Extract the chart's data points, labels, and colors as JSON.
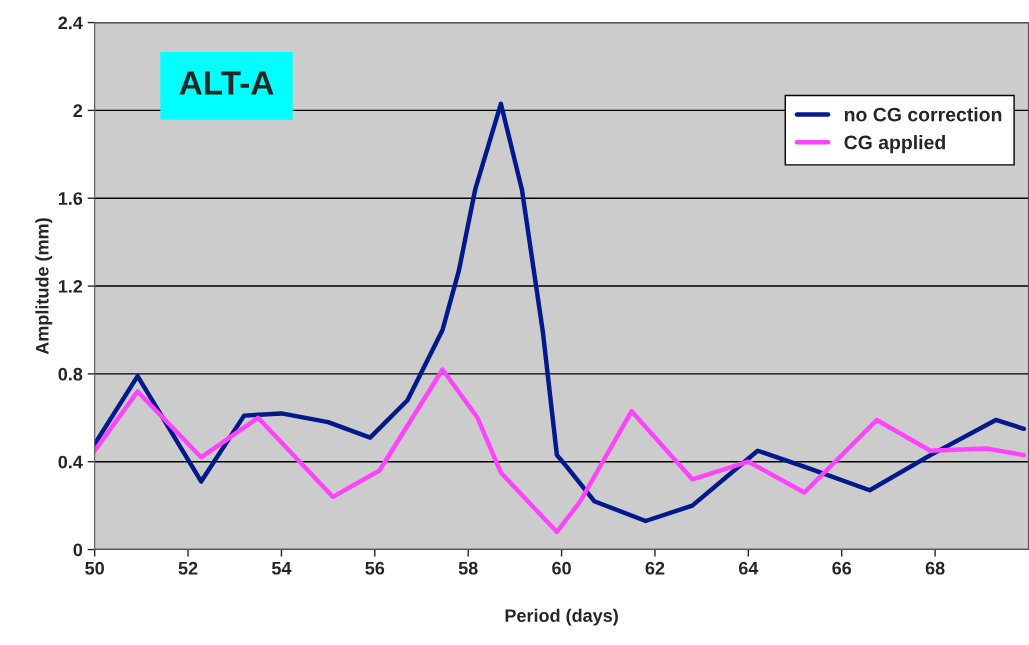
{
  "chart_data": {
    "type": "line",
    "xlabel": "Period (days)",
    "ylabel": "Amplitude (mm)",
    "annotations": [
      "ALT-A"
    ],
    "xlim": [
      50,
      70
    ],
    "xticks": [
      50,
      52,
      54,
      56,
      58,
      60,
      62,
      64,
      66,
      68
    ],
    "ylim": [
      0,
      2.4
    ],
    "yticks": [
      0,
      0.4,
      0.8,
      1.2,
      1.6,
      2,
      2.4
    ],
    "grid": "y",
    "legend": "top right",
    "marker": "none",
    "line_style": "solid",
    "series": [
      {
        "name": "no CG correction",
        "color": "#001a8c",
        "x": [
          50,
          50.92,
          52.28,
          53.2,
          54.0,
          55.0,
          55.9,
          56.7,
          57.45,
          57.8,
          58.15,
          58.7,
          59.15,
          59.6,
          59.9,
          60.1,
          60.7,
          61.8,
          62.8,
          64.2,
          65.3,
          66.6,
          67.9,
          69.3,
          69.9
        ],
        "values": [
          0.48,
          0.79,
          0.31,
          0.61,
          0.62,
          0.58,
          0.51,
          0.68,
          1.0,
          1.27,
          1.64,
          2.03,
          1.64,
          0.99,
          0.43,
          0.38,
          0.22,
          0.13,
          0.2,
          0.45,
          0.37,
          0.27,
          0.43,
          0.59,
          0.55
        ]
      },
      {
        "name": "CG applied",
        "color": "#ff44ff",
        "x": [
          50,
          50.92,
          52.28,
          53.5,
          55.1,
          56.1,
          57.45,
          58.2,
          58.7,
          59.9,
          60.4,
          61.5,
          62.8,
          64.0,
          65.2,
          66.75,
          67.9,
          69.1,
          69.9
        ],
        "values": [
          0.45,
          0.72,
          0.42,
          0.6,
          0.24,
          0.36,
          0.82,
          0.6,
          0.35,
          0.08,
          0.22,
          0.63,
          0.32,
          0.4,
          0.26,
          0.59,
          0.45,
          0.46,
          0.43
        ]
      }
    ]
  }
}
